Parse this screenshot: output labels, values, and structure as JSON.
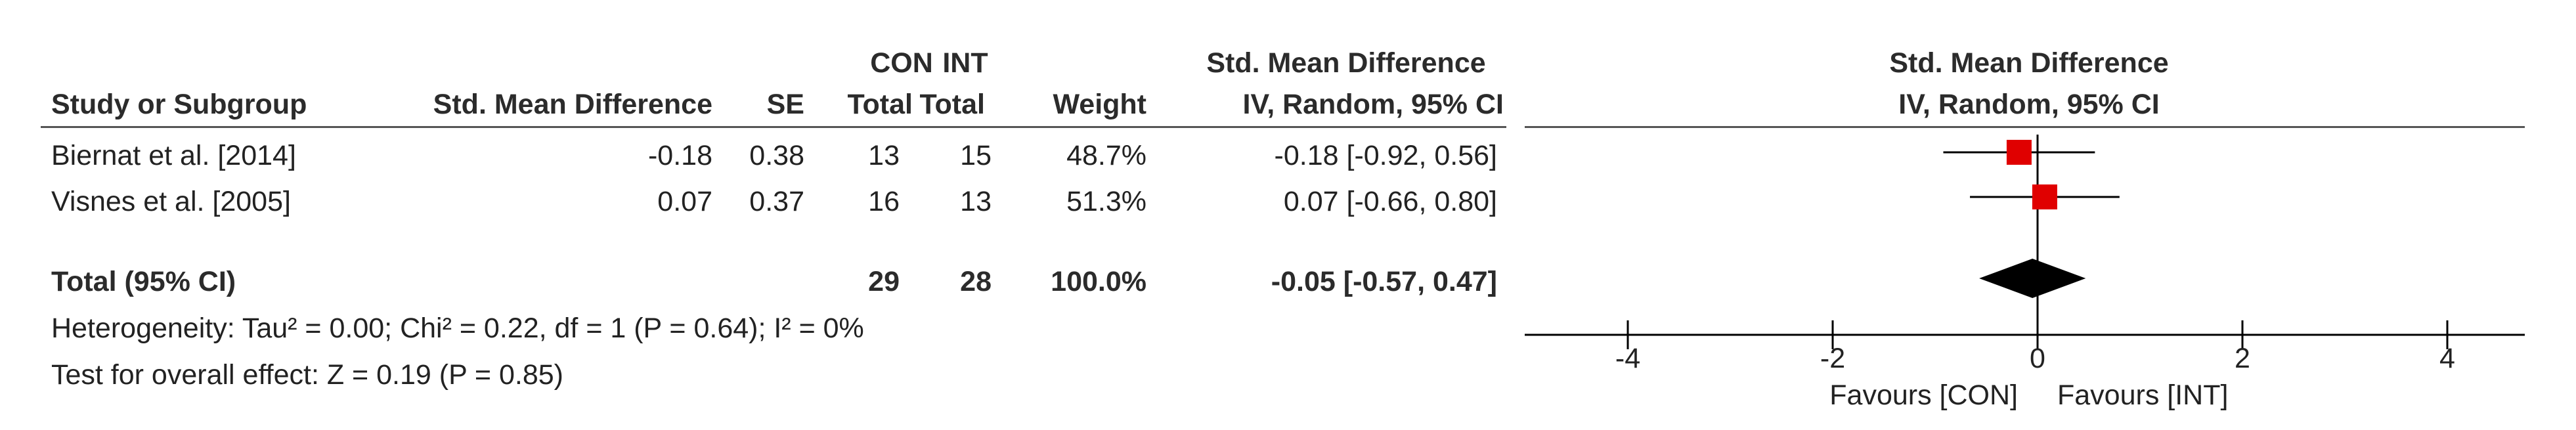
{
  "header": {
    "con": "CON",
    "int": "INT",
    "smd_top": "Std. Mean Difference",
    "study": "Study or Subgroup",
    "smd": "Std. Mean Difference",
    "se": "SE",
    "con_total": "Total",
    "int_total": "Total",
    "weight": "Weight",
    "ci": "IV, Random, 95% CI",
    "plot_top": "Std. Mean Difference",
    "plot_ci": "IV, Random, 95% CI"
  },
  "rows": [
    {
      "study": "Biernat et al. [2014]",
      "smd": "-0.18",
      "se": "0.38",
      "con_total": "13",
      "int_total": "15",
      "weight": "48.7%",
      "ci": "-0.18 [-0.92, 0.56]"
    },
    {
      "study": "Visnes et al. [2005]",
      "smd": "0.07",
      "se": "0.37",
      "con_total": "16",
      "int_total": "13",
      "weight": "51.3%",
      "ci": "0.07 [-0.66, 0.80]"
    }
  ],
  "total": {
    "label": "Total (95% CI)",
    "con_total": "29",
    "int_total": "28",
    "weight": "100.0%",
    "ci": "-0.05 [-0.57, 0.47]"
  },
  "heterogeneity": "Heterogeneity: Tau² = 0.00; Chi² = 0.22, df = 1 (P = 0.64); I² = 0%",
  "overall_effect": "Test for overall effect: Z = 0.19 (P = 0.85)",
  "favours_left": "Favours [CON]",
  "favours_right": "Favours [INT]",
  "chart_data": {
    "type": "forest",
    "title": "Std. Mean Difference",
    "subtitle": "IV, Random, 95% CI",
    "xlim": [
      -4,
      4
    ],
    "x_ticks": [
      "-4",
      "-2",
      "0",
      "2",
      "4"
    ],
    "studies": [
      {
        "name": "Biernat et al. [2014]",
        "estimate": -0.18,
        "ci_low": -0.92,
        "ci_high": 0.56,
        "weight": 48.7
      },
      {
        "name": "Visnes et al. [2005]",
        "estimate": 0.07,
        "ci_low": -0.66,
        "ci_high": 0.8,
        "weight": 51.3
      }
    ],
    "pooled": {
      "estimate": -0.05,
      "ci_low": -0.57,
      "ci_high": 0.47
    },
    "marker_color": "#e00000",
    "diamond_color": "#000000"
  }
}
